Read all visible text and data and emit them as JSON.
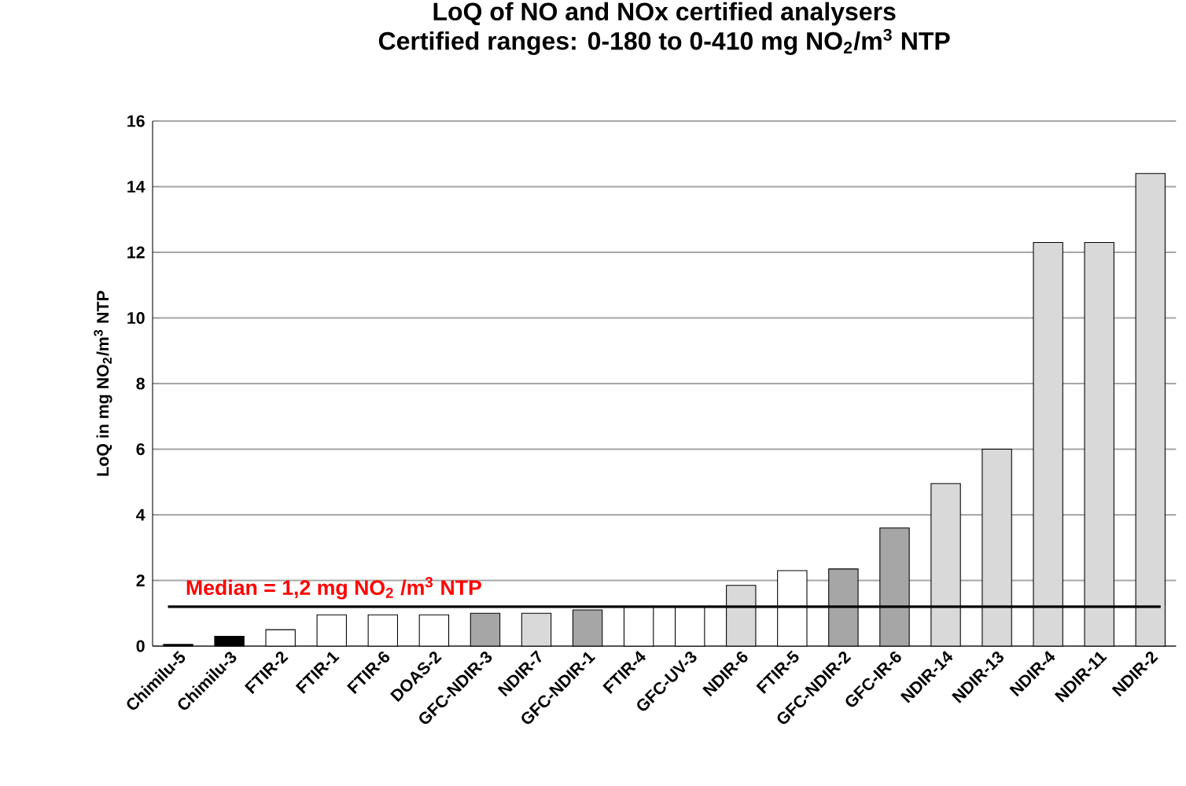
{
  "chart_data": {
    "type": "bar",
    "title": "LoQ of NO and NOx certified analysers",
    "subtitle": "Certified ranges: 0-180 to 0-410 mg NO$_{2}$/m$^{3}$ NTP",
    "ylabel": "LoQ in mg NO$_{2}$/m$^{3}$ NTP",
    "categories": [
      "Chimilu-5",
      "Chimilu-3",
      "FTIR-2",
      "FTIR-1",
      "FTIR-6",
      "DOAS-2",
      "GFC-NDIR-3",
      "NDIR-7",
      "GFC-NDIR-1",
      "FTIR-4",
      "GFC-UV-3",
      "NDIR-6",
      "FTIR-5",
      "GFC-NDIR-2",
      "GFC-IR-6",
      "NDIR-14",
      "NDIR-13",
      "NDIR-4",
      "NDIR-11",
      "NDIR-2"
    ],
    "values": [
      0.05,
      0.3,
      0.5,
      0.95,
      0.95,
      0.95,
      1.0,
      1.0,
      1.1,
      1.2,
      1.2,
      1.85,
      2.3,
      2.35,
      3.6,
      4.95,
      6.0,
      12.3,
      12.3,
      14.4
    ],
    "colors": [
      "#000000",
      "#000000",
      "#ffffff",
      "#ffffff",
      "#ffffff",
      "#ffffff",
      "#a6a6a6",
      "#d9d9d9",
      "#a6a6a6",
      "#ffffff",
      "#ffffff",
      "#d9d9d9",
      "#ffffff",
      "#a6a6a6",
      "#a6a6a6",
      "#d9d9d9",
      "#d9d9d9",
      "#d9d9d9",
      "#d9d9d9",
      "#d9d9d9"
    ],
    "ylim": [
      0,
      16
    ],
    "yticks": [
      0,
      2,
      4,
      6,
      8,
      10,
      12,
      14,
      16
    ],
    "grid": "y",
    "ref_lines": [
      {
        "axis": "y",
        "value": 1.2,
        "label": "Median = 1,2 mg NO$_{2}$ /m$^{3}$ NTP"
      }
    ]
  }
}
